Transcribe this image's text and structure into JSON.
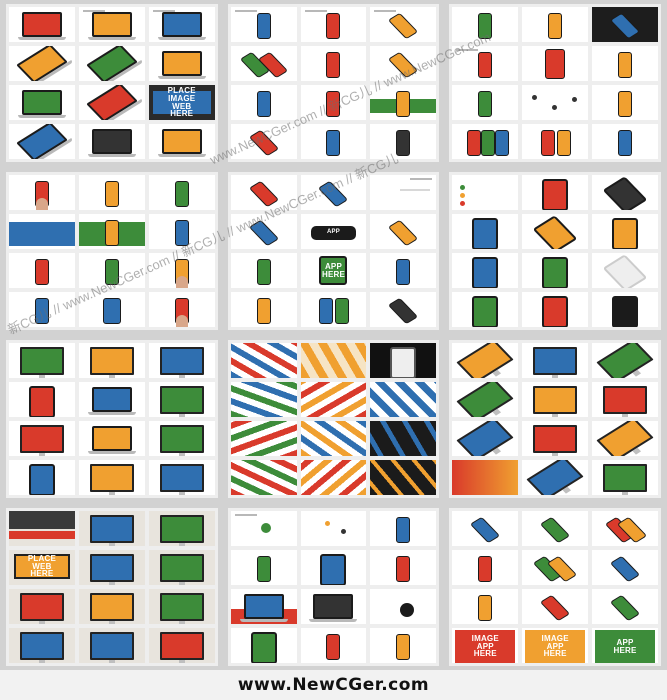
{
  "screen_text": {
    "lines": [
      "PLACE",
      "IMAGE",
      "WEB",
      "HERE"
    ],
    "app_lines": [
      "IMAGE",
      "APP",
      "HERE"
    ]
  },
  "watermark": {
    "text": "新CG儿 // www.NewCGer.com // 新CG儿 // www.NewCGer.com // 新CG儿",
    "text_short": "www.NewCGer.com // 新CG儿 // www.NewCGer.com"
  },
  "footer": {
    "text": "www.NewCGer.com"
  },
  "colors": {
    "red": "#d93a2b",
    "orange": "#f0a030",
    "green": "#3d8c3a",
    "blue": "#2f6fb0",
    "dark": "#1b1b1b",
    "gray": "#bdbdbd"
  }
}
